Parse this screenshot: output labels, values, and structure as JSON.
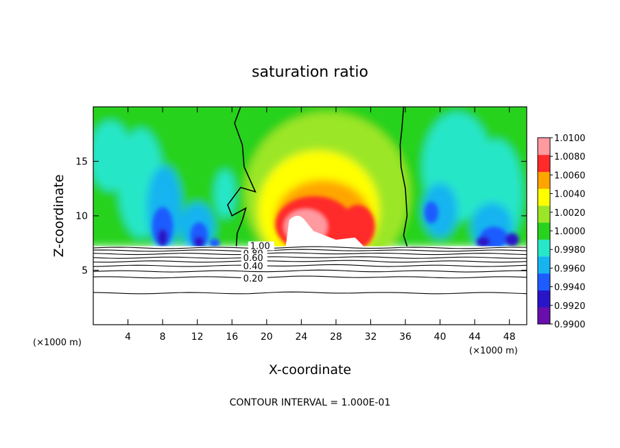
{
  "chart_data": {
    "type": "heatmap",
    "title": "saturation ratio",
    "xlabel": "X-coordinate",
    "ylabel": "Z-coordinate",
    "x_unit": "(×1000 m)",
    "y_unit": "(×1000 m)",
    "xlim": [
      0,
      50
    ],
    "ylim": [
      0,
      20
    ],
    "x_ticks": [
      4,
      8,
      12,
      16,
      20,
      24,
      28,
      32,
      36,
      40,
      44,
      48
    ],
    "y_ticks": [
      5,
      10,
      15
    ],
    "colorbar": {
      "min": 0.99,
      "max": 1.01,
      "labels": [
        "1.0100",
        "1.0080",
        "1.0060",
        "1.0040",
        "1.0020",
        "1.0000",
        "0.9980",
        "0.9960",
        "0.9940",
        "0.9920",
        "0.9900"
      ],
      "colors": [
        "#6a0dad",
        "#2a14c8",
        "#1e5cff",
        "#18b4f0",
        "#28e6c8",
        "#28d21e",
        "#9be628",
        "#ffff00",
        "#ffa500",
        "#ff2a2a",
        "#ff9aa0"
      ]
    },
    "contour_lines": [
      {
        "value": "1.00"
      },
      {
        "value": "0.80"
      },
      {
        "value": "0.60"
      },
      {
        "value": "0.40"
      },
      {
        "value": "0.20"
      }
    ],
    "contour_interval_text": "CONTOUR INTERVAL = 1.000E-01",
    "cloud_top_z": 7.2,
    "saturation_boundary_x": [
      16.5,
      36
    ],
    "dry_region": {
      "below_z": 7.2
    },
    "grid": false
  }
}
